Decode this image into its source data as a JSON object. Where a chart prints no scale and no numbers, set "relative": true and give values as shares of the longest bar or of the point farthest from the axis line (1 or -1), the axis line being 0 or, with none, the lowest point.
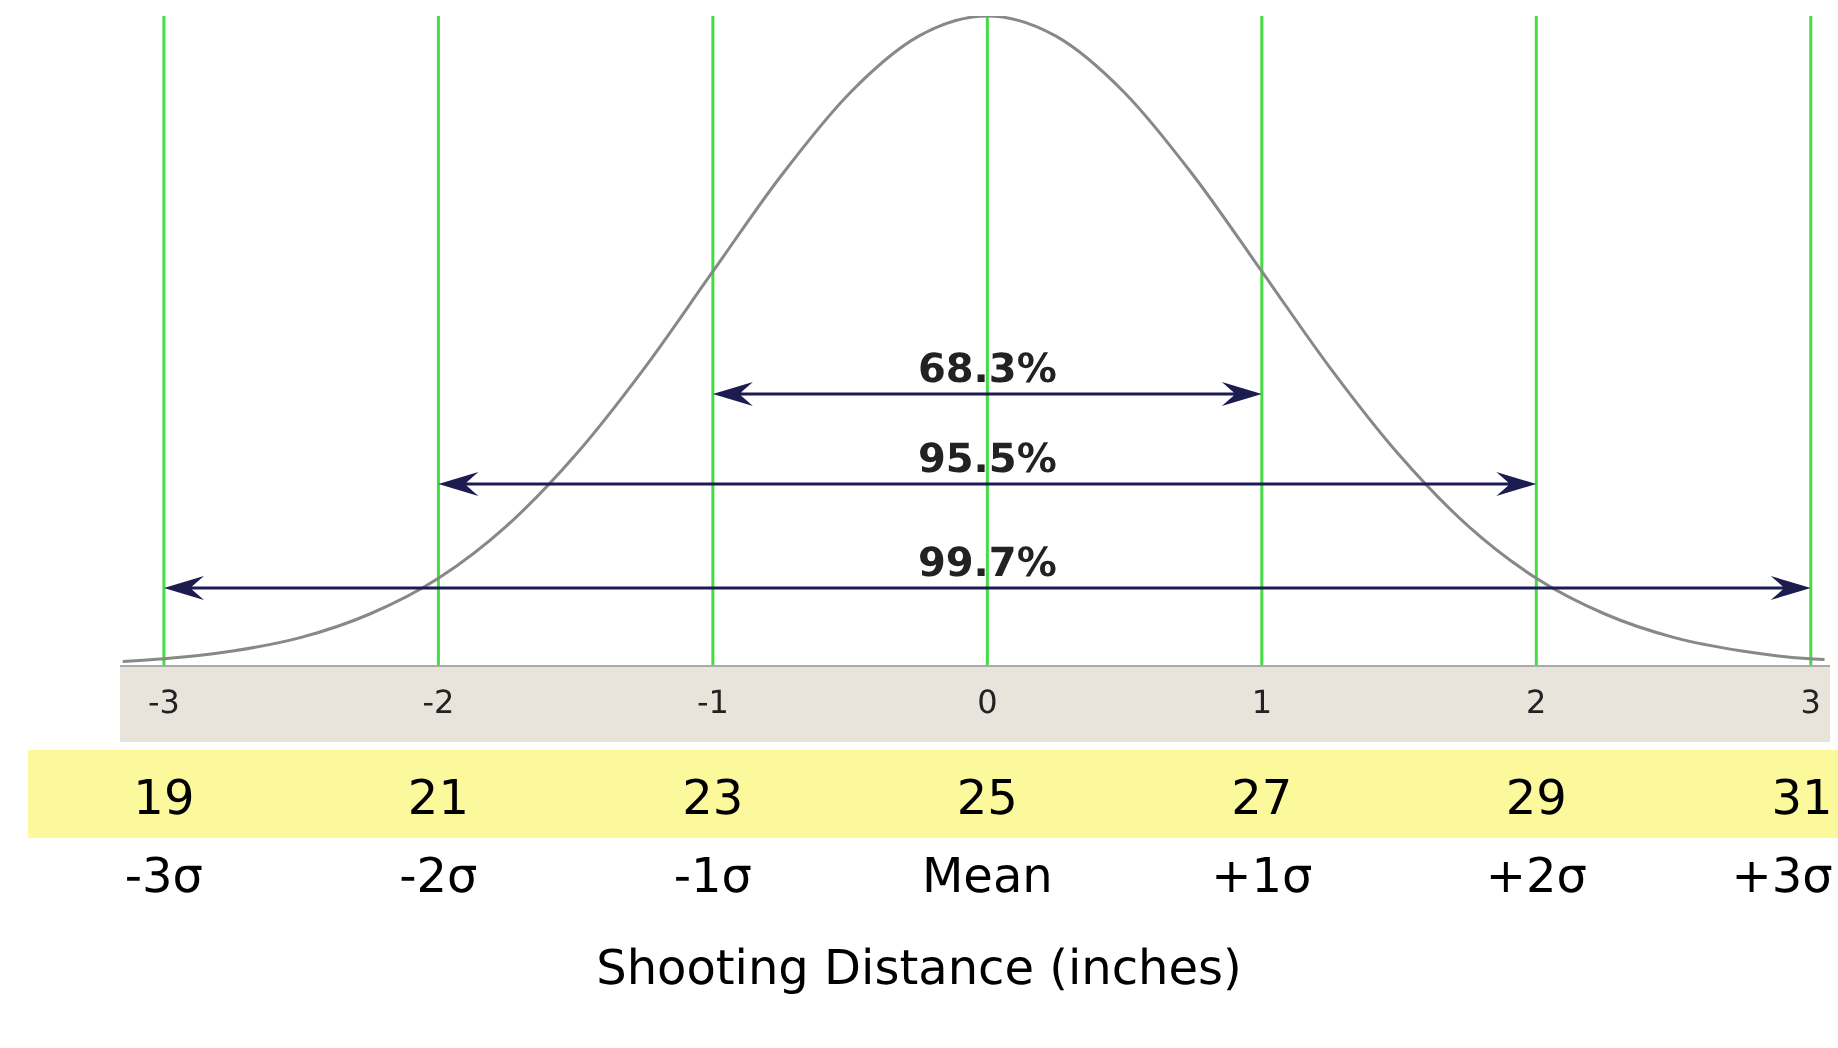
{
  "chart_data": {
    "type": "line",
    "relative": true,
    "color": "#888888",
    "x": [
      -3.15,
      -3,
      -2.75,
      -2.5,
      -2.25,
      -2,
      -1.75,
      -1.5,
      -1.25,
      -1,
      -0.75,
      -0.5,
      -0.25,
      0,
      0.25,
      0.5,
      0.75,
      1,
      1.25,
      1.5,
      1.75,
      2,
      2.25,
      2.5,
      2.75,
      3,
      3.05
    ],
    "values": [
      0.007,
      0.011,
      0.023,
      0.044,
      0.08,
      0.135,
      0.216,
      0.325,
      0.458,
      0.607,
      0.755,
      0.882,
      0.969,
      1,
      0.969,
      0.882,
      0.755,
      0.607,
      0.458,
      0.325,
      0.216,
      0.135,
      0.08,
      0.044,
      0.023,
      0.011,
      0.01
    ],
    "xlim": [
      -3.16,
      3.07
    ],
    "xticks": [
      -3,
      -2,
      -1,
      0,
      1,
      2,
      3
    ],
    "x2lim": [
      18.68,
      31.14
    ],
    "x2ticks": [
      19,
      21,
      23,
      25,
      27,
      29,
      31
    ],
    "annotations": [
      "-3σ",
      "-2σ",
      "-1σ",
      "Mean",
      "+1σ",
      "+2σ",
      "+3σ",
      "68.3%",
      "95.5%",
      "99.7%"
    ],
    "xlabel": "Shooting Distance (inches)",
    "ref_lines": [
      {
        "axis": "x",
        "value": -3,
        "color": "#44dd44"
      },
      {
        "axis": "x",
        "value": -2,
        "color": "#44dd44"
      },
      {
        "axis": "x",
        "value": -1,
        "color": "#44dd44"
      },
      {
        "axis": "x",
        "value": 0,
        "color": "#44dd44"
      },
      {
        "axis": "x",
        "value": 1,
        "color": "#44dd44"
      },
      {
        "axis": "x",
        "value": 2,
        "color": "#44dd44"
      },
      {
        "axis": "x",
        "value": 3,
        "color": "#44dd44"
      }
    ]
  }
}
